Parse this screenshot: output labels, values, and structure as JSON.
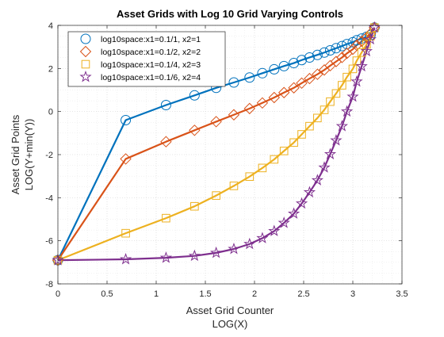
{
  "colors": {
    "series": [
      "#0072BD",
      "#D95319",
      "#EDB120",
      "#7E2F8E"
    ],
    "axis": "#262626",
    "grid_major": "#d9d9d9",
    "grid_minor": "#e6e6e6",
    "background": "#ffffff"
  },
  "chart_data": {
    "type": "line",
    "title": "Asset Grids with Log 10 Grid Varying Controls",
    "xlabel": [
      "Asset Grid Counter",
      "LOG(X)"
    ],
    "ylabel": [
      "Asset Grid Points",
      "LOG(Y+min(Y))"
    ],
    "xlim": [
      0,
      3.5
    ],
    "ylim": [
      -8,
      4
    ],
    "xticks": [
      0,
      0.5,
      1,
      1.5,
      2,
      2.5,
      3,
      3.5
    ],
    "xtick_labels": [
      "0",
      "0.5",
      "1",
      "1.5",
      "2",
      "2.5",
      "3",
      "3.5"
    ],
    "yticks": [
      -8,
      -6,
      -4,
      -2,
      0,
      2,
      4
    ],
    "ytick_labels": [
      "-8",
      "-6",
      "-4",
      "-2",
      "0",
      "2",
      "4"
    ],
    "grid": "major and minor, dotted",
    "legend_placement": "top-left",
    "series": [
      {
        "name": "log10space:x1=0.1/1, x2=1",
        "marker": "circle",
        "points": [
          [
            0,
            -6.9
          ],
          [
            0.69,
            -0.4
          ],
          [
            1.1,
            0.3
          ],
          [
            1.39,
            0.75
          ],
          [
            1.61,
            1.1
          ],
          [
            1.79,
            1.35
          ],
          [
            1.95,
            1.58
          ],
          [
            2.08,
            1.78
          ],
          [
            2.2,
            1.96
          ],
          [
            2.3,
            2.11
          ],
          [
            2.4,
            2.25
          ],
          [
            2.48,
            2.39
          ],
          [
            2.56,
            2.51
          ],
          [
            2.64,
            2.63
          ],
          [
            2.71,
            2.74
          ],
          [
            2.77,
            2.84
          ],
          [
            2.83,
            2.94
          ],
          [
            2.89,
            3.04
          ],
          [
            2.94,
            3.13
          ],
          [
            3.0,
            3.22
          ],
          [
            3.04,
            3.31
          ],
          [
            3.09,
            3.39
          ],
          [
            3.14,
            3.47
          ],
          [
            3.18,
            3.55
          ],
          [
            3.22,
            3.9
          ]
        ]
      },
      {
        "name": "log10space:x1=0.1/2, x2=2",
        "marker": "diamond",
        "points": [
          [
            0,
            -6.9
          ],
          [
            0.69,
            -2.2
          ],
          [
            1.1,
            -1.4
          ],
          [
            1.39,
            -0.87
          ],
          [
            1.61,
            -0.47
          ],
          [
            1.79,
            -0.15
          ],
          [
            1.95,
            0.14
          ],
          [
            2.08,
            0.4
          ],
          [
            2.2,
            0.65
          ],
          [
            2.3,
            0.88
          ],
          [
            2.4,
            1.1
          ],
          [
            2.48,
            1.32
          ],
          [
            2.56,
            1.53
          ],
          [
            2.64,
            1.73
          ],
          [
            2.71,
            1.93
          ],
          [
            2.77,
            2.13
          ],
          [
            2.83,
            2.32
          ],
          [
            2.89,
            2.51
          ],
          [
            2.94,
            2.7
          ],
          [
            3.0,
            2.89
          ],
          [
            3.04,
            3.08
          ],
          [
            3.09,
            3.26
          ],
          [
            3.14,
            3.44
          ],
          [
            3.18,
            3.62
          ],
          [
            3.22,
            3.9
          ]
        ]
      },
      {
        "name": "log10space:x1=0.1/4, x2=3",
        "marker": "square",
        "points": [
          [
            0,
            -6.9
          ],
          [
            0.69,
            -5.65
          ],
          [
            1.1,
            -4.95
          ],
          [
            1.39,
            -4.4
          ],
          [
            1.61,
            -3.9
          ],
          [
            1.79,
            -3.45
          ],
          [
            1.95,
            -3.02
          ],
          [
            2.08,
            -2.62
          ],
          [
            2.2,
            -2.22
          ],
          [
            2.3,
            -1.83
          ],
          [
            2.4,
            -1.44
          ],
          [
            2.48,
            -1.06
          ],
          [
            2.56,
            -0.68
          ],
          [
            2.64,
            -0.3
          ],
          [
            2.71,
            0.08
          ],
          [
            2.77,
            0.46
          ],
          [
            2.83,
            0.84
          ],
          [
            2.89,
            1.22
          ],
          [
            2.94,
            1.6
          ],
          [
            3.0,
            1.98
          ],
          [
            3.04,
            2.36
          ],
          [
            3.09,
            2.74
          ],
          [
            3.14,
            3.12
          ],
          [
            3.18,
            3.5
          ],
          [
            3.22,
            3.9
          ]
        ]
      },
      {
        "name": "log10space:x1=0.1/6, x2=4",
        "marker": "pentagram",
        "points": [
          [
            0,
            -6.9
          ],
          [
            0.69,
            -6.86
          ],
          [
            1.1,
            -6.79
          ],
          [
            1.39,
            -6.7
          ],
          [
            1.61,
            -6.56
          ],
          [
            1.79,
            -6.38
          ],
          [
            1.95,
            -6.15
          ],
          [
            2.08,
            -5.88
          ],
          [
            2.2,
            -5.55
          ],
          [
            2.3,
            -5.17
          ],
          [
            2.4,
            -4.74
          ],
          [
            2.48,
            -4.27
          ],
          [
            2.56,
            -3.75
          ],
          [
            2.64,
            -3.19
          ],
          [
            2.71,
            -2.6
          ],
          [
            2.77,
            -1.98
          ],
          [
            2.83,
            -1.34
          ],
          [
            2.89,
            -0.68
          ],
          [
            2.94,
            0.0
          ],
          [
            3.0,
            0.69
          ],
          [
            3.04,
            1.39
          ],
          [
            3.09,
            2.1
          ],
          [
            3.14,
            2.8
          ],
          [
            3.18,
            3.35
          ],
          [
            3.22,
            3.9
          ]
        ]
      }
    ]
  }
}
